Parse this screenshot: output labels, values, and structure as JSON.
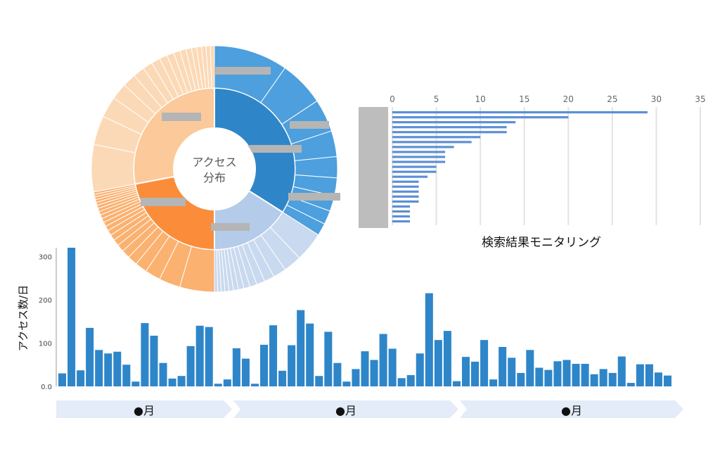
{
  "sunburst": {
    "center_line1": "アクセス",
    "center_line2": "分布",
    "colors": {
      "blue_inner": "#2e86c9",
      "blue_outer": "#4d9fdd",
      "orange_inner": "#fb8c3a",
      "orange_outer": "#fbb170",
      "peach_inner": "#fcc99a",
      "peach_outer": "#fcd9b6",
      "lightblue_inner": "#b4cbe9",
      "lightblue_outer": "#c9d9ef"
    },
    "segments": [
      {
        "share": 0.34,
        "color": "blue",
        "outer_slices": 9
      },
      {
        "share": 0.16,
        "color": "lightblue",
        "outer_slices": 14
      },
      {
        "share": 0.22,
        "color": "orange",
        "outer_slices": 22
      },
      {
        "share": 0.28,
        "color": "peach",
        "outer_slices": 18
      }
    ]
  },
  "chart_data": [
    {
      "type": "bar",
      "orientation": "horizontal",
      "title": "検索結果モニタリング",
      "xlim": [
        0,
        35
      ],
      "x_ticks": [
        "0",
        "5",
        "10",
        "15",
        "20",
        "25",
        "30",
        "35"
      ],
      "values": [
        29,
        20,
        14,
        13,
        13,
        10,
        9,
        7,
        6,
        6,
        6,
        5,
        5,
        4,
        3,
        3,
        3,
        3,
        3,
        2,
        2,
        2,
        2
      ],
      "grid": true
    },
    {
      "type": "bar",
      "ylabel": "アクセス数/日",
      "ylim": [
        0,
        320
      ],
      "y_ticks": [
        "0.0",
        "100",
        "200",
        "300"
      ],
      "values": [
        30,
        320,
        37,
        135,
        84,
        76,
        80,
        50,
        11,
        146,
        117,
        54,
        18,
        24,
        93,
        140,
        137,
        6,
        16,
        88,
        64,
        6,
        96,
        141,
        36,
        95,
        176,
        145,
        24,
        126,
        54,
        11,
        40,
        81,
        61,
        121,
        87,
        19,
        26,
        76,
        215,
        107,
        128,
        12,
        68,
        57,
        107,
        16,
        91,
        66,
        31,
        84,
        43,
        38,
        58,
        61,
        52,
        52,
        28,
        40,
        31,
        69,
        8,
        51,
        51,
        32,
        25
      ],
      "months": [
        "●月",
        "●月",
        "●月"
      ]
    }
  ]
}
